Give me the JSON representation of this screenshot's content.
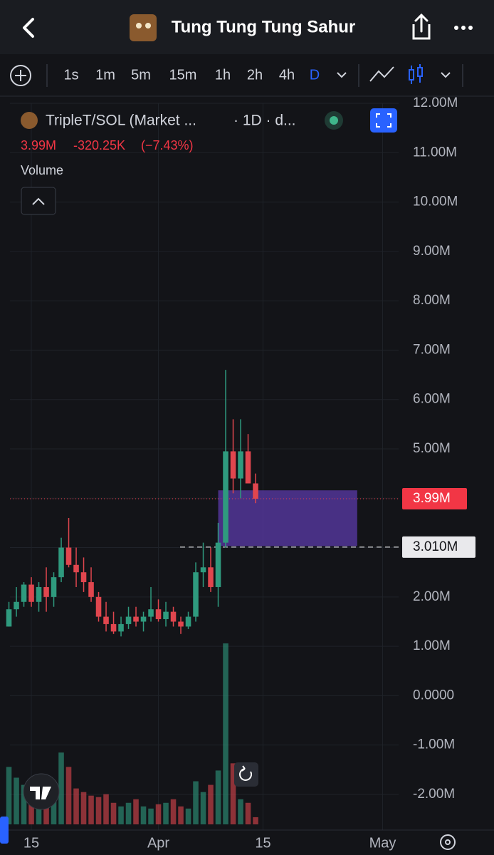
{
  "header": {
    "title": "Tung Tung Tung Sahur"
  },
  "toolbar": {
    "intervals": [
      "1s",
      "1m",
      "5m",
      "15m",
      "1h",
      "2h",
      "4h",
      "D"
    ]
  },
  "legend": {
    "symbol": "TripleT/SOL (Market ...",
    "interval": "· 1D · d...",
    "last": "3.99M",
    "change": "-320.25K",
    "change_pct": "(−7.43%)",
    "volume_label": "Volume"
  },
  "chart_data": {
    "type": "candlestick",
    "x": [
      12,
      13,
      14,
      15,
      16,
      17,
      18,
      19,
      20,
      21,
      22,
      23,
      24,
      25,
      26,
      27,
      28,
      29,
      30,
      31,
      32,
      33,
      34,
      35,
      36,
      37,
      38,
      39,
      40,
      41,
      42,
      43,
      44,
      45
    ],
    "open": [
      1.4,
      1.75,
      1.9,
      2.25,
      1.9,
      2.2,
      2.0,
      2.4,
      3.0,
      2.65,
      2.5,
      2.3,
      2.0,
      1.6,
      1.45,
      1.3,
      1.45,
      1.6,
      1.5,
      1.6,
      1.75,
      1.55,
      1.7,
      1.5,
      1.4,
      1.6,
      2.5,
      2.6,
      2.2,
      3.1,
      4.95,
      4.4,
      4.95,
      4.3
    ],
    "high": [
      1.9,
      2.2,
      2.3,
      2.4,
      2.3,
      2.6,
      2.5,
      3.2,
      3.6,
      3.0,
      2.8,
      2.6,
      2.1,
      1.9,
      1.7,
      1.6,
      1.8,
      1.8,
      1.7,
      2.2,
      1.95,
      1.9,
      1.8,
      1.6,
      1.7,
      2.7,
      3.1,
      3.0,
      3.5,
      6.6,
      5.6,
      5.6,
      5.3,
      4.5
    ],
    "low": [
      1.4,
      1.6,
      1.8,
      1.8,
      1.7,
      1.7,
      1.8,
      2.3,
      2.6,
      2.2,
      2.1,
      1.9,
      1.5,
      1.3,
      1.25,
      1.2,
      1.35,
      1.4,
      1.3,
      1.5,
      1.5,
      1.4,
      1.4,
      1.25,
      1.35,
      1.5,
      2.2,
      2.1,
      1.8,
      3.0,
      4.1,
      4.0,
      4.3,
      3.9
    ],
    "close": [
      1.75,
      1.9,
      2.25,
      1.9,
      2.2,
      2.0,
      2.4,
      3.0,
      2.65,
      2.5,
      2.3,
      2.0,
      1.6,
      1.45,
      1.3,
      1.45,
      1.6,
      1.5,
      1.6,
      1.75,
      1.55,
      1.7,
      1.5,
      1.4,
      1.6,
      2.5,
      2.6,
      2.2,
      3.1,
      4.95,
      4.4,
      4.95,
      4.3,
      3.99
    ],
    "volume": [
      80,
      65,
      55,
      60,
      45,
      50,
      55,
      100,
      80,
      50,
      45,
      40,
      38,
      42,
      30,
      25,
      30,
      35,
      25,
      22,
      28,
      30,
      35,
      25,
      22,
      60,
      45,
      55,
      75,
      252,
      85,
      35,
      30,
      10
    ],
    "up_color": "#2f9a7e",
    "down_color": "#e0464e",
    "xlim": [
      12.14,
      64.14
    ],
    "xticks": [
      15,
      {
        "value": 32,
        "label": "Apr"
      },
      {
        "value": 46,
        "label": "15"
      },
      {
        "value": 62,
        "label": "May"
      }
    ],
    "ylim": [
      -2.65,
      12.0
    ],
    "yticks": [
      {
        "value": 12,
        "label": "12.00M"
      },
      {
        "value": 11,
        "label": "11.00M"
      },
      {
        "value": 10,
        "label": "10.00M"
      },
      {
        "value": 9,
        "label": "9.00M"
      },
      {
        "value": 8,
        "label": "8.00M"
      },
      {
        "value": 7,
        "label": "7.00M"
      },
      {
        "value": 6,
        "label": "6.00M"
      },
      {
        "value": 5,
        "label": "5.00M"
      },
      {
        "value": 4,
        "label": "4.00M"
      },
      {
        "value": 3,
        "label": "3.00M"
      },
      {
        "value": 2,
        "label": "2.00M"
      },
      {
        "value": 1,
        "label": "1.00M"
      },
      {
        "value": 0,
        "label": "0.0000"
      },
      {
        "value": -1,
        "label": "-1.00M"
      },
      {
        "value": -2,
        "label": "-2.00M"
      }
    ],
    "grid": true,
    "price_line": {
      "value": 3.99,
      "label": "3.99M",
      "color": "#f23645"
    },
    "marker_line": {
      "value": 3.01,
      "label": "3.010M"
    },
    "box": {
      "x": [
        40,
        58.6
      ],
      "y": [
        3.03,
        4.16
      ],
      "color": "#5b3aa8"
    }
  }
}
